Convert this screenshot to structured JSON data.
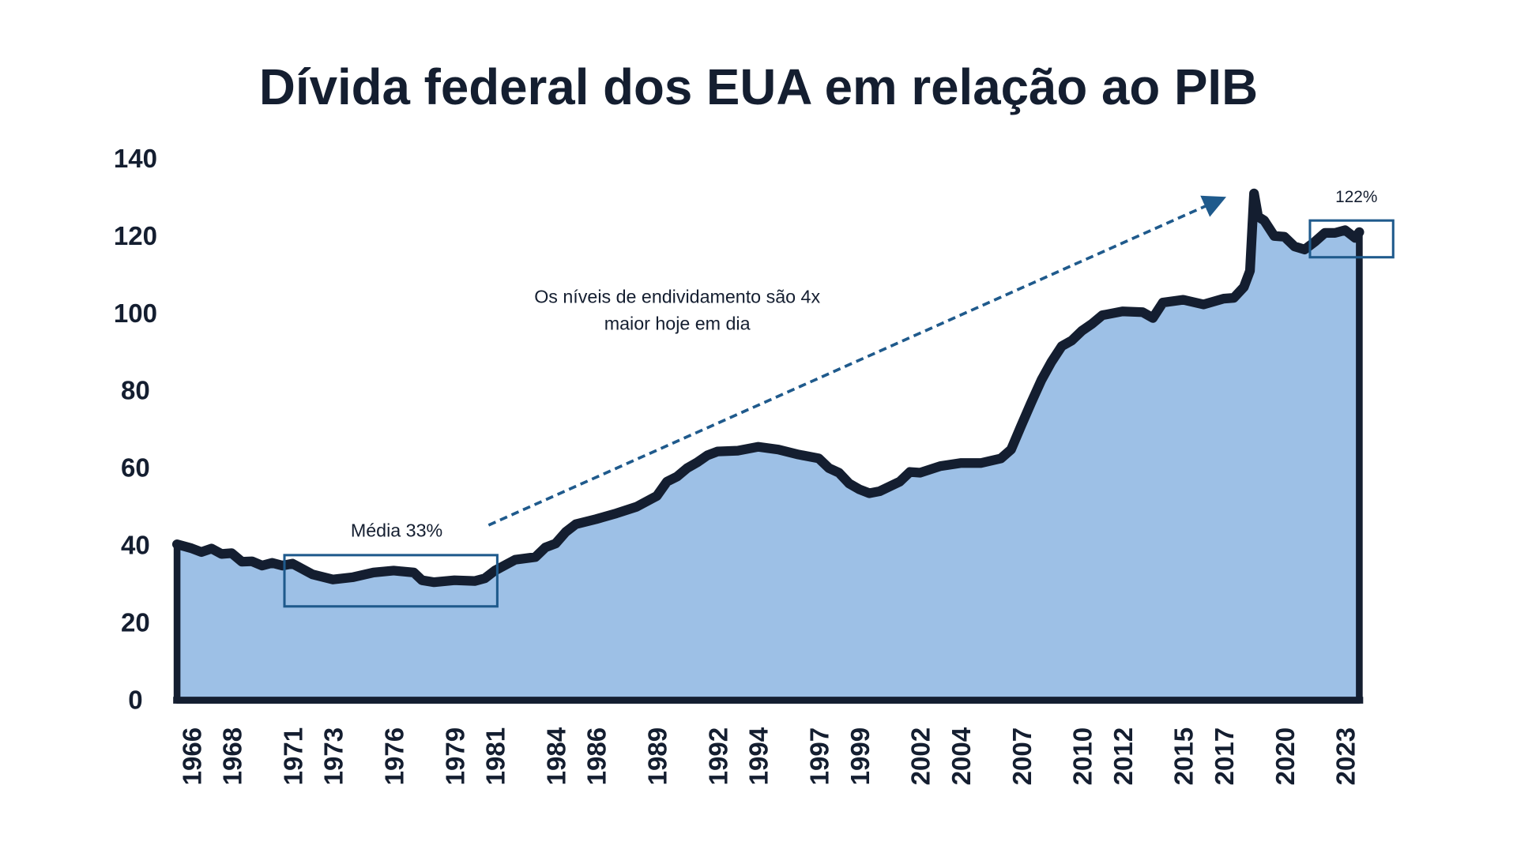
{
  "chart_data": {
    "type": "area",
    "title": "Dívida federal dos EUA em relação ao PIB",
    "annotations": [
      "Média 33%",
      "122%",
      [
        "Os níveis de endividamento são 4x",
        "maior hoje em dia"
      ]
    ],
    "x": [
      1965.3,
      1966,
      1966.5,
      1967,
      1967.5,
      1968,
      1968.5,
      1969,
      1969.5,
      1970,
      1970.5,
      1971,
      1972,
      1973,
      1974,
      1975,
      1976,
      1977,
      1977.4,
      1978,
      1979,
      1980,
      1980.5,
      1981,
      1982,
      1983,
      1983.5,
      1984,
      1984.5,
      1985,
      1986,
      1987,
      1988,
      1989,
      1989.5,
      1990,
      1990.5,
      1991,
      1991.5,
      1992,
      1993,
      1994,
      1995,
      1996,
      1997,
      1997.5,
      1998,
      1998.5,
      1999,
      1999.5,
      2000,
      2001,
      2001.5,
      2002,
      2003,
      2004,
      2005,
      2006,
      2006.5,
      2007,
      2007.5,
      2008,
      2008.5,
      2009,
      2009.5,
      2010,
      2010.5,
      2011,
      2012,
      2013,
      2013.5,
      2014,
      2015,
      2016,
      2017,
      2017.5,
      2018,
      2018.3,
      2018.5,
      2018.7,
      2019,
      2019.5,
      2020,
      2020.5,
      2021,
      2021.5,
      2022,
      2022.5,
      2023,
      2023.5,
      2023.7
    ],
    "series": [
      {
        "color": "#9dc0e6",
        "values": [
          40.3,
          39.3,
          38.3,
          39.2,
          37.8,
          38,
          35.8,
          35.9,
          34.8,
          35.5,
          34.8,
          35.3,
          32.5,
          31.2,
          31.8,
          33,
          33.5,
          33,
          31,
          30.5,
          31,
          30.8,
          31.5,
          33.5,
          36.3,
          37,
          39.5,
          40.5,
          43.5,
          45.5,
          46.8,
          48.3,
          50,
          52.8,
          56.5,
          57.8,
          60,
          61.5,
          63.3,
          64.3,
          64.5,
          65.5,
          64.8,
          63.5,
          62.5,
          60,
          58.8,
          56,
          54.5,
          53.5,
          54,
          56.5,
          59,
          58.8,
          60.5,
          61.3,
          61.3,
          62.5,
          64.8,
          71,
          77,
          82.8,
          87.5,
          91.5,
          93,
          95.5,
          97.3,
          99.5,
          100.5,
          100.3,
          98.8,
          102.8,
          103.5,
          102.3,
          103.8,
          104,
          106.8,
          111,
          131,
          125,
          124,
          120,
          119.8,
          117.3,
          116.5,
          118.5,
          120.8,
          120.8,
          121.5,
          119.5,
          121
        ]
      }
    ],
    "xlim": [
      1965.3,
      2023.7
    ],
    "xticks": [
      1966,
      1968,
      1971,
      1973,
      1976,
      1979,
      1981,
      1984,
      1986,
      1989,
      1992,
      1994,
      1997,
      1999,
      2002,
      2004,
      2007,
      2010,
      2012,
      2015,
      2017,
      2020,
      2023
    ],
    "ylim": [
      0,
      140
    ],
    "yticks": [
      0,
      20,
      40,
      60,
      80,
      100,
      120,
      140
    ],
    "grid": false
  }
}
